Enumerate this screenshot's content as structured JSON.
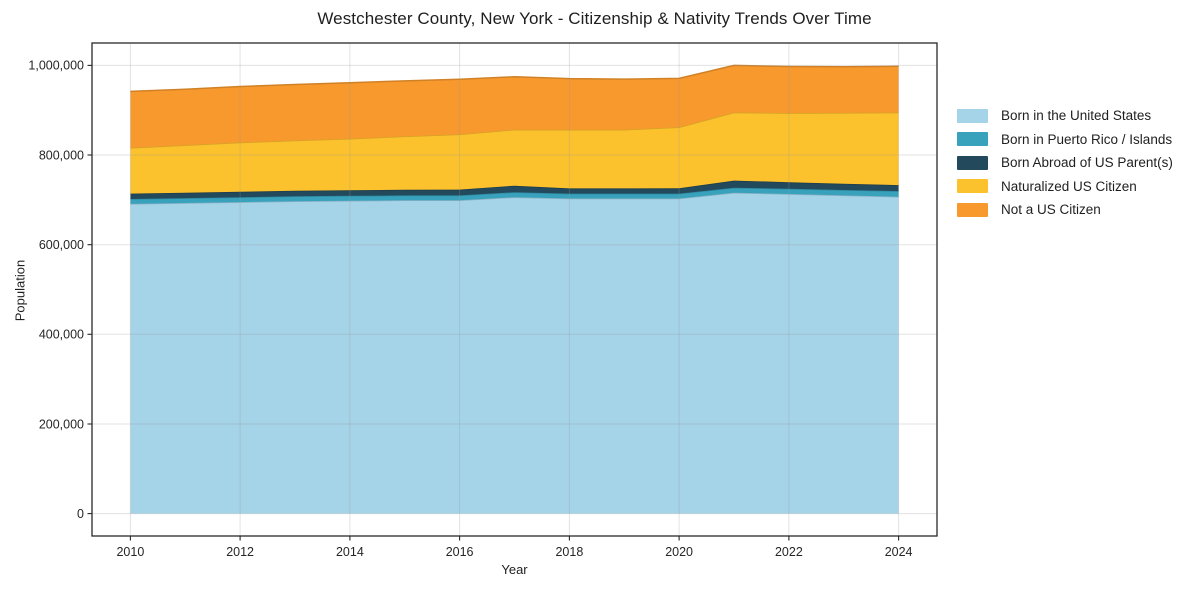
{
  "chart_data": {
    "type": "area",
    "stacked": true,
    "title": "Westchester County, New York - Citizenship & Nativity Trends Over Time",
    "xlabel": "Year",
    "ylabel": "Population",
    "x": [
      2010,
      2011,
      2012,
      2013,
      2014,
      2015,
      2016,
      2017,
      2018,
      2019,
      2020,
      2021,
      2022,
      2023,
      2024
    ],
    "series": [
      {
        "name": "Born in the United States",
        "color": "#a5d3e8",
        "values": [
          691000,
          693000,
          695000,
          697000,
          698000,
          699000,
          699000,
          706000,
          703000,
          703000,
          703000,
          716000,
          713000,
          710000,
          707000
        ]
      },
      {
        "name": "Born in Puerto Rico / Islands",
        "color": "#38a2bd",
        "values": [
          11000,
          11000,
          11000,
          11000,
          11000,
          11000,
          11000,
          11000,
          11000,
          11000,
          11000,
          11000,
          12000,
          12000,
          12500
        ]
      },
      {
        "name": "Born Abroad of US Parent(s)",
        "color": "#22495c",
        "values": [
          12000,
          12000,
          12000,
          12500,
          12500,
          12500,
          13000,
          14500,
          11500,
          11500,
          12000,
          16000,
          14500,
          14000,
          13500
        ]
      },
      {
        "name": "Naturalized US Citizen",
        "color": "#fcc22d",
        "values": [
          102000,
          106000,
          110000,
          112000,
          115000,
          119000,
          123000,
          125000,
          131000,
          131000,
          136000,
          152000,
          154000,
          158000,
          162000
        ]
      },
      {
        "name": "Not a US Citizen",
        "color": "#f8992d",
        "values": [
          126000,
          125000,
          125000,
          125000,
          125000,
          124000,
          123000,
          118000,
          114000,
          113000,
          109000,
          105000,
          104000,
          103000,
          103000
        ]
      }
    ],
    "xlim": [
      2009.3,
      2024.7
    ],
    "ylim": [
      -50000,
      1050000
    ],
    "xticks": [
      2010,
      2012,
      2014,
      2016,
      2018,
      2020,
      2022,
      2024
    ],
    "yticks": [
      0,
      200000,
      400000,
      600000,
      800000,
      1000000
    ],
    "ytick_labels": [
      "0",
      "200,000",
      "400,000",
      "600,000",
      "800,000",
      "1,000,000"
    ],
    "grid": true,
    "legend_position": "right"
  }
}
